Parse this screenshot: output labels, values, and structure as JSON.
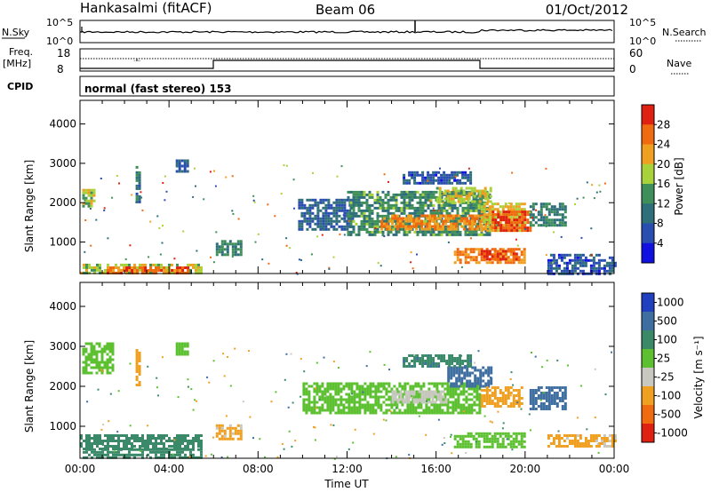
{
  "header": {
    "station": "Hankasalmi (fitACF)",
    "beam": "Beam 06",
    "date": "01/Oct/2012"
  },
  "top_panels": {
    "nsky_label": "N.Sky",
    "nsky_ticks": [
      "10^5",
      "10^0"
    ],
    "nsky_right_ticks": [
      "10^5",
      "10^0"
    ],
    "nsearch_label": "N.Search",
    "freq_label_1": "Freq.",
    "freq_label_2": "[MHz]",
    "freq_ticks": [
      "18",
      "8"
    ],
    "nave_ticks": [
      "60",
      "0"
    ],
    "nave_label": "Nave",
    "cpid_label": "CPID",
    "cpid_value": "normal (fast stereo) 153"
  },
  "colors": {
    "power_scale": [
      "#1010e0",
      "#2a4eb0",
      "#2f6f7a",
      "#3f8f5a",
      "#a8d23a",
      "#f0a020",
      "#f06a10",
      "#e02010"
    ],
    "velocity_scale": [
      "#2040c0",
      "#3f6fa0",
      "#3a8a6a",
      "#5cc030",
      "#c8c8c0",
      "#f0a020",
      "#f06a10",
      "#e02010"
    ]
  },
  "chart_data": [
    {
      "type": "heatmap",
      "panel": "power",
      "ylabel": "Slant Range [km]",
      "y_ticks": [
        "1000",
        "2000",
        "3000",
        "4000"
      ],
      "ylim": [
        200,
        4600
      ],
      "colorbar_label": "Power [dB]",
      "colorbar_ticks": [
        "4",
        "8",
        "12",
        "16",
        "20",
        "24",
        "28"
      ],
      "clim": [
        0,
        32
      ],
      "regions": [
        {
          "t0": 0.0,
          "t1": 5.5,
          "r0": 200,
          "r1": 450,
          "v": 18
        },
        {
          "t0": 1.2,
          "t1": 4.8,
          "r0": 230,
          "r1": 380,
          "v": 26
        },
        {
          "t0": 0.1,
          "t1": 0.6,
          "r0": 1900,
          "r1": 2350,
          "v": 18
        },
        {
          "t0": 2.5,
          "t1": 2.7,
          "r0": 2000,
          "r1": 3000,
          "v": 10
        },
        {
          "t0": 4.3,
          "t1": 4.8,
          "r0": 2800,
          "r1": 3100,
          "v": 8
        },
        {
          "t0": 6.1,
          "t1": 7.2,
          "r0": 650,
          "r1": 1050,
          "v": 12
        },
        {
          "t0": 9.8,
          "t1": 12.2,
          "r0": 1300,
          "r1": 2100,
          "v": 8
        },
        {
          "t0": 12.0,
          "t1": 18.4,
          "r0": 1200,
          "r1": 2300,
          "v": 13
        },
        {
          "t0": 13.5,
          "t1": 18.5,
          "r0": 1350,
          "r1": 1700,
          "v": 24
        },
        {
          "t0": 16.0,
          "t1": 18.5,
          "r0": 2000,
          "r1": 2400,
          "v": 19
        },
        {
          "t0": 18.0,
          "t1": 20.0,
          "r0": 1300,
          "r1": 2000,
          "v": 20
        },
        {
          "t0": 18.5,
          "t1": 20.2,
          "r0": 1300,
          "r1": 1800,
          "v": 28
        },
        {
          "t0": 16.8,
          "t1": 20.0,
          "r0": 500,
          "r1": 850,
          "v": 24
        },
        {
          "t0": 18.0,
          "t1": 19.6,
          "r0": 550,
          "r1": 800,
          "v": 29
        },
        {
          "t0": 20.2,
          "t1": 21.8,
          "r0": 1400,
          "r1": 2000,
          "v": 12
        },
        {
          "t0": 14.5,
          "t1": 17.5,
          "r0": 2500,
          "r1": 2800,
          "v": 7
        },
        {
          "t0": 21.0,
          "t1": 24.0,
          "r0": 200,
          "r1": 700,
          "v": 7
        }
      ]
    },
    {
      "type": "heatmap",
      "panel": "velocity",
      "ylabel": "Slant Range [km]",
      "y_ticks": [
        "1000",
        "2000",
        "3000",
        "4000"
      ],
      "ylim": [
        200,
        4600
      ],
      "xlabel": "Time UT",
      "x_ticks": [
        "00:00",
        "04:00",
        "08:00",
        "12:00",
        "16:00",
        "20:00",
        "00:00"
      ],
      "xlim": [
        0,
        24
      ],
      "colorbar_label": "Velocity [m s⁻¹]",
      "colorbar_ticks": [
        "1000",
        "500",
        "100",
        "25",
        "-25",
        "-100",
        "-500",
        "-1000"
      ],
      "regions": [
        {
          "t0": 0.0,
          "t1": 5.5,
          "r0": 200,
          "r1": 450,
          "v": 50
        },
        {
          "t0": 0.0,
          "t1": 5.5,
          "r0": 450,
          "r1": 800,
          "v": 60
        },
        {
          "t0": 0.1,
          "t1": 1.5,
          "r0": 2300,
          "r1": 3100,
          "v": 0
        },
        {
          "t0": 2.5,
          "t1": 2.7,
          "r0": 2000,
          "r1": 3000,
          "v": -300
        },
        {
          "t0": 4.3,
          "t1": 4.8,
          "r0": 2800,
          "r1": 3100,
          "v": 0
        },
        {
          "t0": 6.1,
          "t1": 7.2,
          "r0": 650,
          "r1": 1050,
          "v": -120
        },
        {
          "t0": 10.0,
          "t1": 18.0,
          "r0": 1300,
          "r1": 2100,
          "v": 0
        },
        {
          "t0": 14.0,
          "t1": 16.5,
          "r0": 1600,
          "r1": 1900,
          "v": -60
        },
        {
          "t0": 16.5,
          "t1": 18.5,
          "r0": 2000,
          "r1": 2500,
          "v": 300
        },
        {
          "t0": 18.0,
          "t1": 19.8,
          "r0": 1500,
          "r1": 2000,
          "v": -300
        },
        {
          "t0": 20.2,
          "t1": 21.8,
          "r0": 1400,
          "r1": 2000,
          "v": 200
        },
        {
          "t0": 14.5,
          "t1": 17.5,
          "r0": 2500,
          "r1": 2800,
          "v": 80
        },
        {
          "t0": 16.8,
          "t1": 20.0,
          "r0": 500,
          "r1": 850,
          "v": 0
        },
        {
          "t0": 21.0,
          "t1": 24.0,
          "r0": 500,
          "r1": 800,
          "v": -120
        }
      ]
    }
  ]
}
